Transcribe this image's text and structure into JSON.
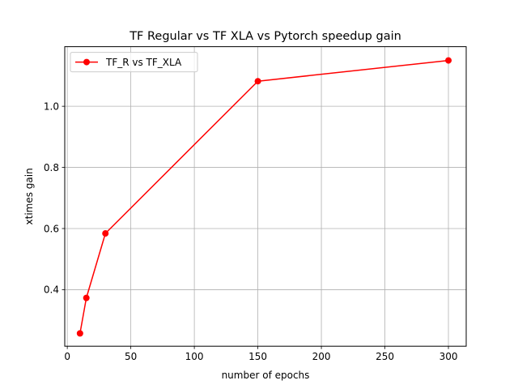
{
  "chart_data": {
    "type": "line",
    "title": "TF Regular vs TF XLA vs Pytorch speedup gain",
    "xlabel": "number of epochs",
    "ylabel": "xtimes gain",
    "xlim": [
      -2,
      314
    ],
    "ylim": [
      0.215,
      1.195
    ],
    "xticks": [
      0,
      50,
      100,
      150,
      200,
      250,
      300
    ],
    "yticks": [
      0.4,
      0.6,
      0.8,
      1.0
    ],
    "ytick_labels": [
      "0.4",
      "0.6",
      "0.8",
      "1.0"
    ],
    "grid": true,
    "legend_position": "upper-left",
    "series": [
      {
        "name": "TF_R vs TF_XLA",
        "color": "#ff0000",
        "marker": "circle",
        "x": [
          10,
          15,
          30,
          150,
          300
        ],
        "y": [
          0.257,
          0.373,
          0.584,
          1.082,
          1.15
        ]
      }
    ]
  }
}
